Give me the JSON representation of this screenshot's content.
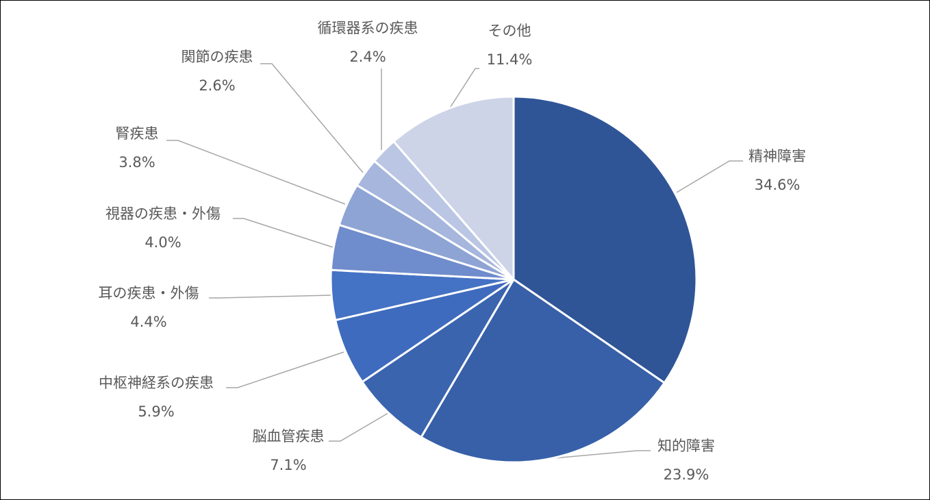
{
  "chart_data": {
    "type": "pie",
    "title": "",
    "start": "12 o'clock, clockwise",
    "slices": [
      {
        "label": "精神障害",
        "value": 34.6,
        "value_label": "34.6%",
        "color": "#2f5597"
      },
      {
        "label": "知的障害",
        "value": 23.9,
        "value_label": "23.9%",
        "color": "#3760a8"
      },
      {
        "label": "脳血管疾患",
        "value": 7.1,
        "value_label": "7.1%",
        "color": "#3b64ae"
      },
      {
        "label": "中枢神経系の疾患",
        "value": 5.9,
        "value_label": "5.9%",
        "color": "#3e6bbd"
      },
      {
        "label": "耳の疾患・外傷",
        "value": 4.4,
        "value_label": "4.4%",
        "color": "#4472c4"
      },
      {
        "label": "視器の疾患・外傷",
        "value": 4.0,
        "value_label": "4.0%",
        "color": "#6f8ccc"
      },
      {
        "label": "腎疾患",
        "value": 3.8,
        "value_label": "3.8%",
        "color": "#8ea4d4"
      },
      {
        "label": "関節の疾患",
        "value": 2.6,
        "value_label": "2.6%",
        "color": "#a6b6dd"
      },
      {
        "label": "循環器系の疾患",
        "value": 2.4,
        "value_label": "2.4%",
        "color": "#bac6e4"
      },
      {
        "label": "その他",
        "value": 11.4,
        "value_label": "11.4%",
        "color": "#cdd4e8"
      }
    ],
    "legend": "none",
    "label_style": "outside labels with leader lines"
  }
}
